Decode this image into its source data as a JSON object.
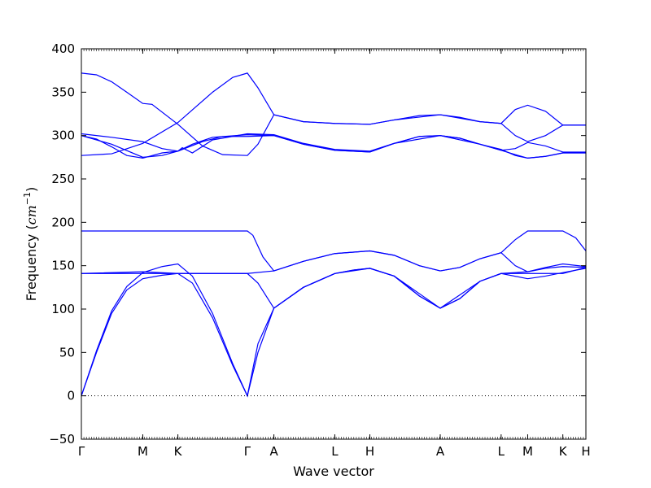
{
  "chart_data": {
    "type": "line",
    "xlabel": "Wave vector",
    "ylabel": "Frequency ($cm^{-1}$)",
    "ylabel_parts": {
      "prefix": "Frequency (",
      "base": "cm",
      "sup": "−1",
      "suffix": ")"
    },
    "ylim": [
      -50,
      400
    ],
    "yticks": [
      -50,
      0,
      50,
      100,
      150,
      200,
      250,
      300,
      350,
      400
    ],
    "xlim": [
      0,
      1
    ],
    "path_ticks": [
      {
        "label": "Γ",
        "x": 0.0
      },
      {
        "label": "M",
        "x": 0.1217
      },
      {
        "label": "K",
        "x": 0.1913
      },
      {
        "label": "Γ",
        "x": 0.329
      },
      {
        "label": "A",
        "x": 0.3816
      },
      {
        "label": "L",
        "x": 0.5023
      },
      {
        "label": "H",
        "x": 0.5718
      },
      {
        "label": "A",
        "x": 0.7113
      },
      {
        "label": "L",
        "x": 0.832
      },
      {
        "label": "M",
        "x": 0.8846
      },
      {
        "label": "K",
        "x": 0.9543
      },
      {
        "label": "H",
        "x": 1.0
      }
    ],
    "zero_line": 0,
    "grid": false,
    "legend": "none",
    "band_color": "#0000ff",
    "series": [
      {
        "points": [
          [
            0,
            0
          ],
          [
            0.03,
            50
          ],
          [
            0.06,
            95
          ],
          [
            0.09,
            122
          ],
          [
            0.1217,
            135
          ],
          [
            0.16,
            139
          ],
          [
            0.1913,
            141
          ],
          [
            0.22,
            130
          ],
          [
            0.26,
            90
          ],
          [
            0.3,
            35
          ],
          [
            0.329,
            0
          ],
          [
            0.35,
            50
          ],
          [
            0.3816,
            101
          ],
          [
            0.44,
            125
          ],
          [
            0.5023,
            141
          ],
          [
            0.54,
            145
          ],
          [
            0.5718,
            147
          ],
          [
            0.62,
            138
          ],
          [
            0.67,
            115
          ],
          [
            0.7113,
            101
          ],
          [
            0.75,
            112
          ],
          [
            0.79,
            132
          ],
          [
            0.832,
            141
          ],
          [
            0.8846,
            143
          ],
          [
            0.92,
            147
          ],
          [
            0.9543,
            149
          ],
          [
            1.0,
            148
          ]
        ]
      },
      {
        "points": [
          [
            0,
            0
          ],
          [
            0.03,
            52
          ],
          [
            0.06,
            98
          ],
          [
            0.09,
            126
          ],
          [
            0.1217,
            142
          ],
          [
            0.16,
            149
          ],
          [
            0.1913,
            152
          ],
          [
            0.22,
            138
          ],
          [
            0.26,
            95
          ],
          [
            0.3,
            37
          ],
          [
            0.329,
            0
          ],
          [
            0.35,
            60
          ],
          [
            0.3816,
            101
          ],
          [
            0.44,
            125
          ],
          [
            0.5023,
            141
          ],
          [
            0.54,
            145
          ],
          [
            0.5718,
            147
          ],
          [
            0.62,
            138
          ],
          [
            0.67,
            115
          ],
          [
            0.7113,
            101
          ],
          [
            0.75,
            112
          ],
          [
            0.79,
            132
          ],
          [
            0.832,
            141
          ],
          [
            0.8846,
            135
          ],
          [
            0.92,
            138
          ],
          [
            0.9543,
            142
          ],
          [
            1.0,
            147
          ]
        ]
      },
      {
        "points": [
          [
            0,
            141
          ],
          [
            0.1217,
            141
          ],
          [
            0.1913,
            141
          ],
          [
            0.329,
            141
          ],
          [
            0.35,
            130
          ],
          [
            0.3816,
            101
          ],
          [
            0.44,
            125
          ],
          [
            0.5023,
            141
          ],
          [
            0.5718,
            147
          ],
          [
            0.62,
            138
          ],
          [
            0.7113,
            101
          ],
          [
            0.79,
            132
          ],
          [
            0.832,
            141
          ],
          [
            0.8846,
            141
          ],
          [
            0.9543,
            141
          ],
          [
            1.0,
            148
          ]
        ]
      },
      {
        "points": [
          [
            0,
            141
          ],
          [
            0.1217,
            143
          ],
          [
            0.1913,
            141
          ],
          [
            0.329,
            141
          ],
          [
            0.3816,
            144
          ],
          [
            0.44,
            155
          ],
          [
            0.5023,
            164
          ],
          [
            0.5718,
            167
          ],
          [
            0.62,
            162
          ],
          [
            0.67,
            150
          ],
          [
            0.7113,
            144
          ],
          [
            0.75,
            148
          ],
          [
            0.79,
            158
          ],
          [
            0.832,
            165
          ],
          [
            0.86,
            150
          ],
          [
            0.8846,
            143
          ],
          [
            0.92,
            148
          ],
          [
            0.9543,
            152
          ],
          [
            1.0,
            149
          ]
        ]
      },
      {
        "points": [
          [
            0,
            190
          ],
          [
            0.1217,
            190
          ],
          [
            0.1913,
            190
          ],
          [
            0.329,
            190
          ],
          [
            0.34,
            185
          ],
          [
            0.36,
            160
          ],
          [
            0.3816,
            144
          ],
          [
            0.44,
            155
          ],
          [
            0.5023,
            164
          ],
          [
            0.5718,
            167
          ],
          [
            0.62,
            162
          ],
          [
            0.67,
            150
          ],
          [
            0.7113,
            144
          ],
          [
            0.75,
            148
          ],
          [
            0.79,
            158
          ],
          [
            0.832,
            165
          ],
          [
            0.86,
            180
          ],
          [
            0.8846,
            190
          ],
          [
            0.9543,
            190
          ],
          [
            0.98,
            182
          ],
          [
            1.0,
            167
          ]
        ]
      },
      {
        "points": [
          [
            0,
            277
          ],
          [
            0.06,
            279
          ],
          [
            0.1217,
            291
          ],
          [
            0.1913,
            315
          ],
          [
            0.26,
            350
          ],
          [
            0.3,
            367
          ],
          [
            0.329,
            372
          ],
          [
            0.35,
            355
          ],
          [
            0.3816,
            324
          ],
          [
            0.44,
            316
          ],
          [
            0.5023,
            314
          ],
          [
            0.5718,
            313
          ],
          [
            0.62,
            318
          ],
          [
            0.67,
            323
          ],
          [
            0.7113,
            324
          ],
          [
            0.75,
            321
          ],
          [
            0.79,
            316
          ],
          [
            0.832,
            314
          ],
          [
            0.86,
            330
          ],
          [
            0.8846,
            335
          ],
          [
            0.92,
            328
          ],
          [
            0.9543,
            312
          ],
          [
            1.0,
            312
          ]
        ]
      },
      {
        "points": [
          [
            0,
            372
          ],
          [
            0.03,
            370
          ],
          [
            0.06,
            362
          ],
          [
            0.09,
            350
          ],
          [
            0.1217,
            337
          ],
          [
            0.14,
            336
          ],
          [
            0.1913,
            313
          ],
          [
            0.24,
            288
          ],
          [
            0.28,
            278
          ],
          [
            0.329,
            277
          ],
          [
            0.35,
            290
          ],
          [
            0.3816,
            324
          ],
          [
            0.44,
            316
          ],
          [
            0.5023,
            314
          ],
          [
            0.5718,
            313
          ],
          [
            0.62,
            318
          ],
          [
            0.7113,
            324
          ],
          [
            0.79,
            316
          ],
          [
            0.832,
            314
          ],
          [
            0.86,
            300
          ],
          [
            0.8846,
            293
          ],
          [
            0.92,
            300
          ],
          [
            0.9543,
            312
          ],
          [
            1.0,
            312
          ]
        ]
      },
      {
        "points": [
          [
            0,
            302
          ],
          [
            0.06,
            298
          ],
          [
            0.1217,
            293
          ],
          [
            0.16,
            285
          ],
          [
            0.1913,
            282
          ],
          [
            0.24,
            293
          ],
          [
            0.28,
            299
          ],
          [
            0.329,
            299
          ],
          [
            0.3816,
            300
          ],
          [
            0.44,
            290
          ],
          [
            0.5023,
            283
          ],
          [
            0.5718,
            281
          ],
          [
            0.62,
            291
          ],
          [
            0.67,
            299
          ],
          [
            0.7113,
            300
          ],
          [
            0.75,
            297
          ],
          [
            0.79,
            290
          ],
          [
            0.832,
            283
          ],
          [
            0.86,
            285
          ],
          [
            0.8846,
            292
          ],
          [
            0.92,
            288
          ],
          [
            0.9543,
            281
          ],
          [
            1.0,
            281
          ]
        ]
      },
      {
        "points": [
          [
            0,
            300
          ],
          [
            0.03,
            296
          ],
          [
            0.06,
            287
          ],
          [
            0.09,
            277
          ],
          [
            0.1217,
            274
          ],
          [
            0.16,
            280
          ],
          [
            0.1913,
            282
          ],
          [
            0.22,
            290
          ],
          [
            0.26,
            298
          ],
          [
            0.329,
            301
          ],
          [
            0.3816,
            300
          ],
          [
            0.44,
            290
          ],
          [
            0.5023,
            283
          ],
          [
            0.5718,
            281
          ],
          [
            0.62,
            291
          ],
          [
            0.67,
            299
          ],
          [
            0.7113,
            300
          ],
          [
            0.75,
            297
          ],
          [
            0.79,
            290
          ],
          [
            0.832,
            283
          ],
          [
            0.86,
            278
          ],
          [
            0.8846,
            274
          ],
          [
            0.92,
            276
          ],
          [
            0.9543,
            280
          ],
          [
            1.0,
            280
          ]
        ]
      },
      {
        "points": [
          [
            0,
            300
          ],
          [
            0.06,
            290
          ],
          [
            0.1217,
            275
          ],
          [
            0.16,
            277
          ],
          [
            0.1913,
            282
          ],
          [
            0.2,
            286
          ],
          [
            0.22,
            280
          ],
          [
            0.26,
            295
          ],
          [
            0.329,
            302
          ],
          [
            0.3816,
            301
          ],
          [
            0.44,
            291
          ],
          [
            0.5023,
            284
          ],
          [
            0.5718,
            282
          ],
          [
            0.62,
            291
          ],
          [
            0.7113,
            300
          ],
          [
            0.79,
            290
          ],
          [
            0.832,
            284
          ],
          [
            0.86,
            277
          ],
          [
            0.8846,
            274
          ],
          [
            0.92,
            276
          ],
          [
            0.9543,
            280
          ],
          [
            1.0,
            280
          ]
        ]
      }
    ]
  }
}
